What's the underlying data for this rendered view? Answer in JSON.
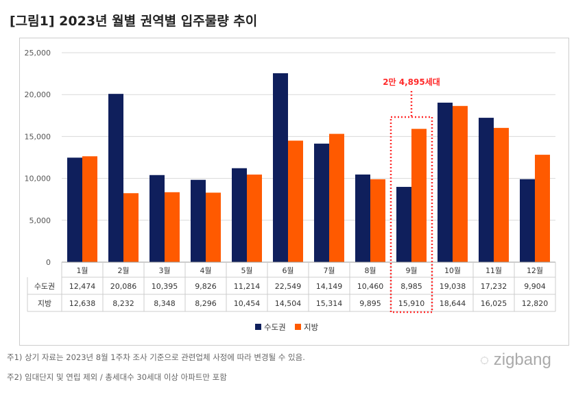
{
  "title": "[그림1]  2023년 월별 권역별 입주물량 추이",
  "chart_data": {
    "type": "bar",
    "categories": [
      "1월",
      "2월",
      "3월",
      "4월",
      "5월",
      "6월",
      "7월",
      "8월",
      "9월",
      "10월",
      "11월",
      "12월"
    ],
    "series": [
      {
        "name": "수도권",
        "color": "#0f1f5c",
        "values": [
          12474,
          20086,
          10395,
          9826,
          11214,
          22549,
          14149,
          10460,
          8985,
          19038,
          17232,
          9904
        ]
      },
      {
        "name": "지방",
        "color": "#ff5a00",
        "values": [
          12638,
          8232,
          8348,
          8296,
          10454,
          14504,
          15314,
          9895,
          15910,
          18644,
          16025,
          12820
        ]
      }
    ],
    "table_rows": [
      {
        "label": "수도권",
        "cells": [
          "12,474",
          "20,086",
          "10,395",
          "9,826",
          "11,214",
          "22,549",
          "14,149",
          "10,460",
          "8,985",
          "19,038",
          "17,232",
          "9,904"
        ]
      },
      {
        "label": "지방",
        "cells": [
          "12,638",
          "8,232",
          "8,348",
          "8,296",
          "10,454",
          "14,504",
          "15,314",
          "9,895",
          "15,910",
          "18,644",
          "16,025",
          "12,820"
        ]
      }
    ],
    "yticks": [
      "0",
      "5,000",
      "10,000",
      "15,000",
      "20,000",
      "25,000"
    ],
    "ylim": [
      0,
      25000
    ],
    "grid": true,
    "legend": "bottom",
    "annotation": {
      "text": "2만 4,895세대",
      "category": "9월",
      "color": "#ff2a2a"
    }
  },
  "notes": [
    "주1) 상기 자료는 2023년 8월 1주차 조사 기준으로 관련업체 사정에 따라 변경될 수 있음.",
    "주2) 임대단지 및 연립 제외 / 총세대수 30세대 이상 아파트만 포함"
  ],
  "logo": "zigbang"
}
